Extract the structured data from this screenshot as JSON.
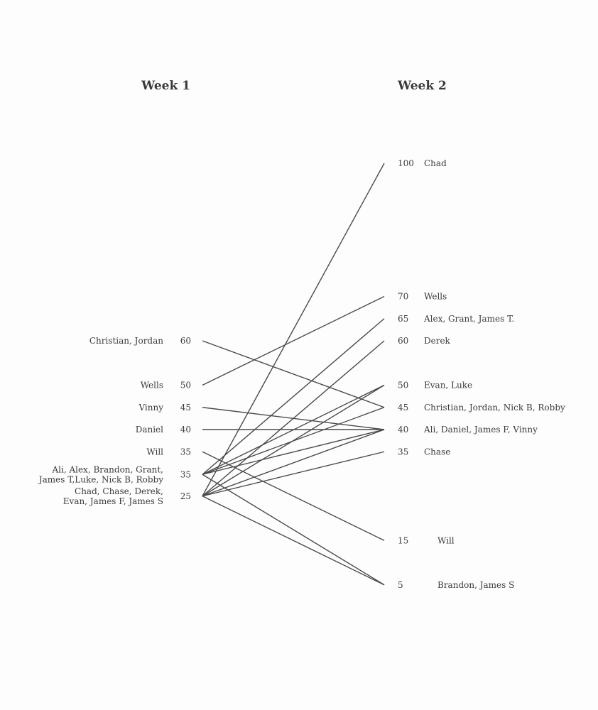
{
  "chart_data": {
    "type": "slope",
    "columns": [
      "Week 1",
      "Week 2"
    ],
    "week1": [
      {
        "value": 60,
        "label": [
          "Christian, Jordan"
        ]
      },
      {
        "value": 50,
        "label": [
          "Wells"
        ]
      },
      {
        "value": 45,
        "label": [
          "Vinny"
        ]
      },
      {
        "value": 40,
        "label": [
          "Daniel"
        ]
      },
      {
        "value": 35,
        "label": [
          "Will"
        ]
      },
      {
        "value": 35,
        "label": [
          "Ali, Alex, Brandon, Grant,",
          "James T,Luke, Nick B, Robby"
        ]
      },
      {
        "value": 25,
        "label": [
          "Chad, Chase, Derek,",
          "Evan, James F, James S"
        ]
      }
    ],
    "week2": [
      {
        "value": 100,
        "label": "Chad"
      },
      {
        "value": 70,
        "label": "Wells"
      },
      {
        "value": 65,
        "label": "Alex, Grant, James T."
      },
      {
        "value": 60,
        "label": "Derek"
      },
      {
        "value": 50,
        "label": "Evan, Luke"
      },
      {
        "value": 45,
        "label": "Christian, Jordan, Nick B, Robby"
      },
      {
        "value": 40,
        "label": "Ali, Daniel, James F, Vinny"
      },
      {
        "value": 35,
        "label": "Chase"
      },
      {
        "value": 15,
        "label": "Will"
      },
      {
        "value": 5,
        "label": "Brandon, James S"
      }
    ],
    "links": [
      {
        "from": 0,
        "to": 5
      },
      {
        "from": 1,
        "to": 1
      },
      {
        "from": 2,
        "to": 6
      },
      {
        "from": 3,
        "to": 6
      },
      {
        "from": 4,
        "to": 8
      },
      {
        "from": 5,
        "to": 2
      },
      {
        "from": 5,
        "to": 4
      },
      {
        "from": 5,
        "to": 5
      },
      {
        "from": 5,
        "to": 6
      },
      {
        "from": 5,
        "to": 9
      },
      {
        "from": 6,
        "to": 0
      },
      {
        "from": 6,
        "to": 3
      },
      {
        "from": 6,
        "to": 4
      },
      {
        "from": 6,
        "to": 6
      },
      {
        "from": 6,
        "to": 7
      },
      {
        "from": 6,
        "to": 9
      }
    ]
  }
}
